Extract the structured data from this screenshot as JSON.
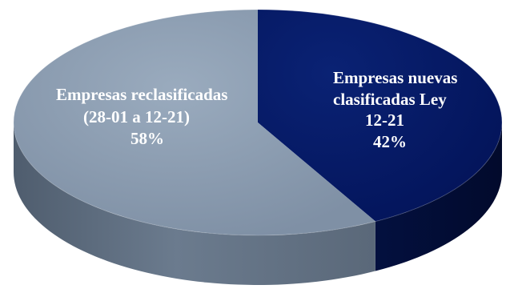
{
  "chart_data": {
    "type": "pie",
    "style": "3d-pie",
    "legend": "none",
    "slices": [
      {
        "label_lines": [
          "Empresas nuevas",
          "clasificadas Ley",
          "12-21"
        ],
        "percent_label": "42%",
        "value": 42,
        "color": "#04175e"
      },
      {
        "label_lines": [
          "Empresas reclasificadas",
          "(28-01 a 12-21)"
        ],
        "percent_label": "58%",
        "value": 58,
        "color": "#8a9bb0"
      }
    ]
  }
}
